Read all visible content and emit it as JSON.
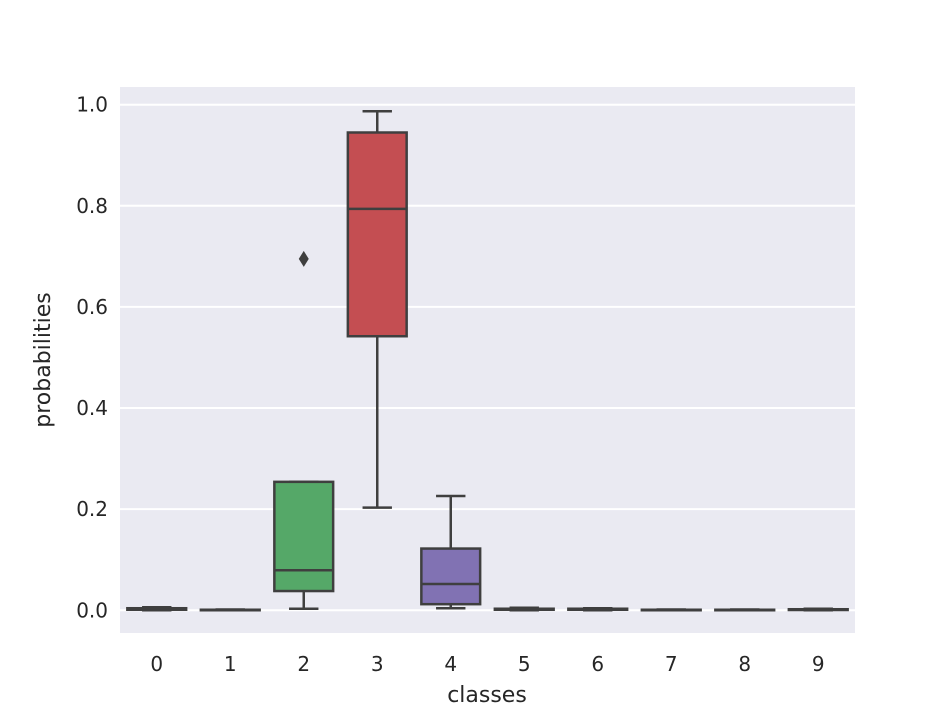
{
  "chart_data": {
    "type": "box",
    "xlabel": "classes",
    "ylabel": "probabilities",
    "ylim": [
      -0.045,
      1.035
    ],
    "yticks": [
      "0.0",
      "0.2",
      "0.4",
      "0.6",
      "0.8",
      "1.0"
    ],
    "grid": true,
    "categories": [
      "0",
      "1",
      "2",
      "3",
      "4",
      "5",
      "6",
      "7",
      "8",
      "9"
    ],
    "boxes": [
      {
        "class": "0",
        "whisker_low": 0.0,
        "q1": 0.001,
        "median": 0.002,
        "q3": 0.004,
        "whisker_high": 0.006,
        "outliers": [],
        "color": "#4c72b0"
      },
      {
        "class": "1",
        "whisker_low": 0.0,
        "q1": 0.0,
        "median": 0.0005,
        "q3": 0.001,
        "whisker_high": 0.0015,
        "outliers": [],
        "color": "#dd8452"
      },
      {
        "class": "2",
        "whisker_low": 0.003,
        "q1": 0.038,
        "median": 0.079,
        "q3": 0.254,
        "whisker_high": 0.254,
        "outliers": [
          0.695
        ],
        "color": "#55a868"
      },
      {
        "class": "3",
        "whisker_low": 0.203,
        "q1": 0.542,
        "median": 0.794,
        "q3": 0.945,
        "whisker_high": 0.987,
        "outliers": [],
        "color": "#c44e52"
      },
      {
        "class": "4",
        "whisker_low": 0.004,
        "q1": 0.012,
        "median": 0.052,
        "q3": 0.122,
        "whisker_high": 0.226,
        "outliers": [],
        "color": "#8172b3"
      },
      {
        "class": "5",
        "whisker_low": 0.0,
        "q1": 0.001,
        "median": 0.002,
        "q3": 0.003,
        "whisker_high": 0.005,
        "outliers": [],
        "color": "#937860"
      },
      {
        "class": "6",
        "whisker_low": 0.0,
        "q1": 0.001,
        "median": 0.0015,
        "q3": 0.003,
        "whisker_high": 0.004,
        "outliers": [],
        "color": "#da8bc3"
      },
      {
        "class": "7",
        "whisker_low": 0.0,
        "q1": 0.0,
        "median": 0.0005,
        "q3": 0.001,
        "whisker_high": 0.0015,
        "outliers": [],
        "color": "#8c8c8c"
      },
      {
        "class": "8",
        "whisker_low": 0.0,
        "q1": 0.0,
        "median": 0.0005,
        "q3": 0.001,
        "whisker_high": 0.0015,
        "outliers": [],
        "color": "#ccb974"
      },
      {
        "class": "9",
        "whisker_low": 0.0,
        "q1": 0.0005,
        "median": 0.001,
        "q3": 0.002,
        "whisker_high": 0.003,
        "outliers": [],
        "color": "#64b5cd"
      }
    ],
    "colors": {
      "plot_background": "#eaeaf2",
      "grid": "#ffffff",
      "line": "#3f3f3f"
    }
  }
}
